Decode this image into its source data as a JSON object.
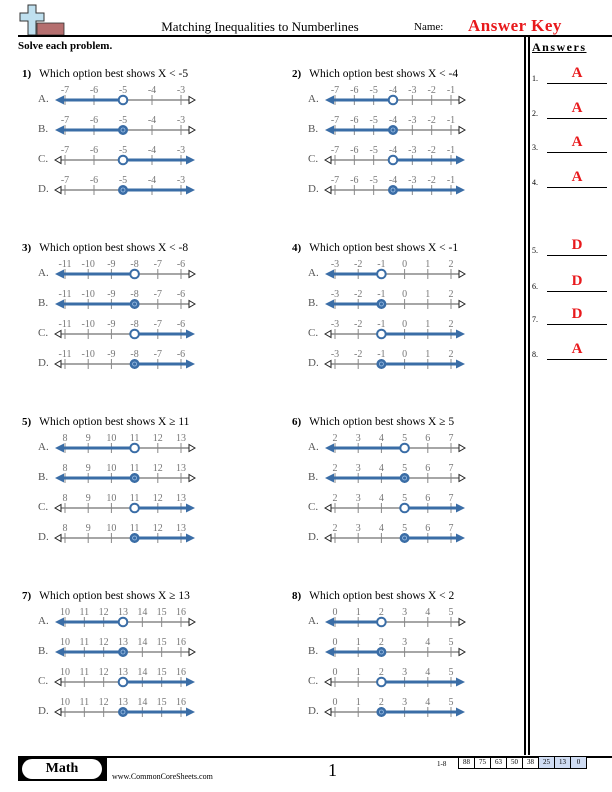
{
  "header": {
    "title": "Matching Inequalities to Numberlines",
    "name_label": "Name:",
    "name_value": "Answer Key",
    "logo_icon": "plus-and-bar-logo-icon"
  },
  "instructions": "Solve each problem.",
  "colors": {
    "accent_blue": "#3a6da6",
    "axis_gray": "#888888",
    "answer_red": "#e8191c",
    "score_highlight": "#cfdcf3"
  },
  "problems": [
    {
      "num": "1)",
      "prompt": "Which option best shows X < -5",
      "ticks": [
        "-7",
        "-6",
        "-5",
        "-4",
        "-3"
      ],
      "point_index": 2,
      "options": [
        {
          "label": "A.",
          "dir": "left",
          "closed": false
        },
        {
          "label": "B.",
          "dir": "left",
          "closed": true
        },
        {
          "label": "C.",
          "dir": "right",
          "closed": false
        },
        {
          "label": "D.",
          "dir": "right",
          "closed": true
        }
      ]
    },
    {
      "num": "2)",
      "prompt": "Which option best shows X < -4",
      "ticks": [
        "-7",
        "-6",
        "-5",
        "-4",
        "-3",
        "-2",
        "-1"
      ],
      "point_index": 3,
      "options": [
        {
          "label": "A.",
          "dir": "left",
          "closed": false
        },
        {
          "label": "B.",
          "dir": "left",
          "closed": true
        },
        {
          "label": "C.",
          "dir": "right",
          "closed": false
        },
        {
          "label": "D.",
          "dir": "right",
          "closed": true
        }
      ]
    },
    {
      "num": "3)",
      "prompt": "Which option best shows X < -8",
      "ticks": [
        "-11",
        "-10",
        "-9",
        "-8",
        "-7",
        "-6"
      ],
      "point_index": 3,
      "options": [
        {
          "label": "A.",
          "dir": "left",
          "closed": false
        },
        {
          "label": "B.",
          "dir": "left",
          "closed": true
        },
        {
          "label": "C.",
          "dir": "right",
          "closed": false
        },
        {
          "label": "D.",
          "dir": "right",
          "closed": true
        }
      ]
    },
    {
      "num": "4)",
      "prompt": "Which option best shows X < -1",
      "ticks": [
        "-3",
        "-2",
        "-1",
        "0",
        "1",
        "2"
      ],
      "point_index": 2,
      "options": [
        {
          "label": "A.",
          "dir": "left",
          "closed": false
        },
        {
          "label": "B.",
          "dir": "left",
          "closed": true
        },
        {
          "label": "C.",
          "dir": "right",
          "closed": false
        },
        {
          "label": "D.",
          "dir": "right",
          "closed": true
        }
      ]
    },
    {
      "num": "5)",
      "prompt": "Which option best shows X ≥ 11",
      "ticks": [
        "8",
        "9",
        "10",
        "11",
        "12",
        "13"
      ],
      "point_index": 3,
      "options": [
        {
          "label": "A.",
          "dir": "left",
          "closed": false
        },
        {
          "label": "B.",
          "dir": "left",
          "closed": true
        },
        {
          "label": "C.",
          "dir": "right",
          "closed": false
        },
        {
          "label": "D.",
          "dir": "right",
          "closed": true
        }
      ]
    },
    {
      "num": "6)",
      "prompt": "Which option best shows X ≥ 5",
      "ticks": [
        "2",
        "3",
        "4",
        "5",
        "6",
        "7"
      ],
      "point_index": 3,
      "options": [
        {
          "label": "A.",
          "dir": "left",
          "closed": false
        },
        {
          "label": "B.",
          "dir": "left",
          "closed": true
        },
        {
          "label": "C.",
          "dir": "right",
          "closed": false
        },
        {
          "label": "D.",
          "dir": "right",
          "closed": true
        }
      ]
    },
    {
      "num": "7)",
      "prompt": "Which option best shows X ≥ 13",
      "ticks": [
        "10",
        "11",
        "12",
        "13",
        "14",
        "15",
        "16"
      ],
      "point_index": 3,
      "options": [
        {
          "label": "A.",
          "dir": "left",
          "closed": false
        },
        {
          "label": "B.",
          "dir": "left",
          "closed": true
        },
        {
          "label": "C.",
          "dir": "right",
          "closed": false
        },
        {
          "label": "D.",
          "dir": "right",
          "closed": true
        }
      ]
    },
    {
      "num": "8)",
      "prompt": "Which option best shows X < 2",
      "ticks": [
        "0",
        "1",
        "2",
        "3",
        "4",
        "5"
      ],
      "point_index": 2,
      "options": [
        {
          "label": "A.",
          "dir": "left",
          "closed": false
        },
        {
          "label": "B.",
          "dir": "left",
          "closed": true
        },
        {
          "label": "C.",
          "dir": "right",
          "closed": false
        },
        {
          "label": "D.",
          "dir": "right",
          "closed": true
        }
      ]
    }
  ],
  "answers": {
    "title": "Answers",
    "items": [
      {
        "num": "1.",
        "value": "A"
      },
      {
        "num": "2.",
        "value": "A"
      },
      {
        "num": "3.",
        "value": "A"
      },
      {
        "num": "4.",
        "value": "A"
      },
      {
        "num": "5.",
        "value": "D"
      },
      {
        "num": "6.",
        "value": "D"
      },
      {
        "num": "7.",
        "value": "D"
      },
      {
        "num": "8.",
        "value": "A"
      }
    ]
  },
  "footer": {
    "subject": "Math",
    "website": "www.CommonCoreSheets.com",
    "page_number": "1",
    "score_range_label": "1-8",
    "scores": [
      "88",
      "75",
      "63",
      "50",
      "38",
      "25",
      "13",
      "0"
    ],
    "highlighted_scores": [
      5,
      6,
      7
    ]
  }
}
